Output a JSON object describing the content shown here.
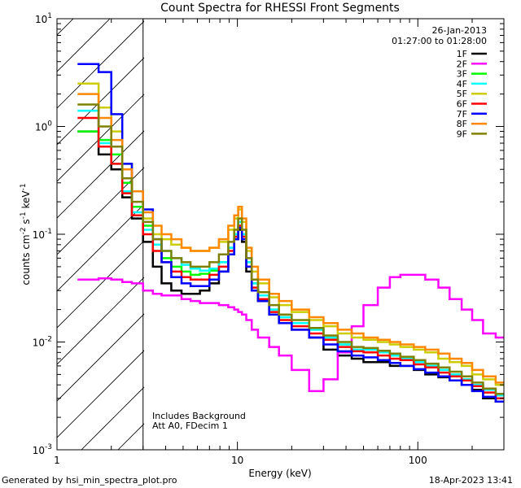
{
  "chart_data": {
    "type": "line",
    "title": "Count Spectra for RHESSI Front Segments",
    "xlabel": "Energy (keV)",
    "ylabel": "counts cm",
    "ylabel_sup1": "-2",
    "ylabel_mid": " s",
    "ylabel_sup2": "-1",
    "ylabel_end": " keV",
    "ylabel_sup3": "-1",
    "xscale": "log",
    "yscale": "log",
    "xlim": [
      1,
      300
    ],
    "ylim": [
      0.001,
      10
    ],
    "x_ticks": [
      {
        "value": 1,
        "label": "1"
      },
      {
        "value": 10,
        "label": "10"
      },
      {
        "value": 100,
        "label": "100"
      }
    ],
    "y_ticks": [
      {
        "value": 0.001,
        "base": "10",
        "exp": "-3"
      },
      {
        "value": 0.01,
        "base": "10",
        "exp": "-2"
      },
      {
        "value": 0.1,
        "base": "10",
        "exp": "-1"
      },
      {
        "value": 1,
        "base": "10",
        "exp": "0"
      },
      {
        "value": 10,
        "base": "10",
        "exp": "1"
      }
    ],
    "shaded_region": {
      "x_range": [
        1,
        3
      ],
      "pattern": "hatch"
    },
    "date": "26-Jan-2013",
    "time_range": "01:27:00 to 01:28:00",
    "annotations": [
      "Includes Background",
      "Att A0, FDecim 1"
    ],
    "legend_position": "top-right",
    "energy_edges": [
      1.3,
      1.7,
      2.0,
      2.3,
      2.6,
      3.0,
      3.4,
      3.8,
      4.3,
      4.9,
      5.5,
      6.2,
      7.0,
      7.9,
      8.9,
      9.6,
      10.1,
      10.6,
      11.2,
      12.0,
      13.0,
      15.0,
      17.0,
      20.0,
      25.0,
      30.0,
      36.0,
      43.0,
      50.0,
      60.0,
      70.0,
      80.0,
      95.0,
      110.0,
      130.0,
      150.0,
      175.0,
      200.0,
      230.0,
      270.0,
      300.0
    ],
    "series": [
      {
        "name": "1F",
        "color": "#000000",
        "values": [
          0.9,
          0.55,
          0.4,
          0.22,
          0.14,
          0.085,
          0.05,
          0.035,
          0.03,
          0.028,
          0.028,
          0.03,
          0.035,
          0.045,
          0.065,
          0.09,
          0.11,
          0.085,
          0.045,
          0.03,
          0.024,
          0.018,
          0.015,
          0.013,
          0.011,
          0.0085,
          0.0075,
          0.007,
          0.0065,
          0.0065,
          0.006,
          0.006,
          0.0055,
          0.005,
          0.0047,
          0.0044,
          0.004,
          0.0036,
          0.003,
          0.0028
        ]
      },
      {
        "name": "2F",
        "color": "#FF00FF",
        "values": [
          0.038,
          0.039,
          0.038,
          0.036,
          0.035,
          0.03,
          0.028,
          0.027,
          0.027,
          0.025,
          0.024,
          0.023,
          0.023,
          0.022,
          0.021,
          0.02,
          0.019,
          0.018,
          0.016,
          0.013,
          0.011,
          0.009,
          0.0075,
          0.0055,
          0.0035,
          0.0045,
          0.008,
          0.014,
          0.022,
          0.032,
          0.04,
          0.042,
          0.042,
          0.038,
          0.032,
          0.025,
          0.02,
          0.016,
          0.012,
          0.011
        ]
      },
      {
        "name": "3F",
        "color": "#00FF00",
        "values": [
          0.9,
          0.75,
          0.55,
          0.3,
          0.18,
          0.12,
          0.08,
          0.06,
          0.05,
          0.045,
          0.042,
          0.043,
          0.046,
          0.055,
          0.075,
          0.1,
          0.13,
          0.1,
          0.055,
          0.035,
          0.027,
          0.02,
          0.017,
          0.015,
          0.013,
          0.011,
          0.0095,
          0.0085,
          0.0085,
          0.008,
          0.0075,
          0.007,
          0.0065,
          0.006,
          0.0055,
          0.005,
          0.0045,
          0.004,
          0.0036,
          0.0032
        ]
      },
      {
        "name": "4F",
        "color": "#00FFFF",
        "values": [
          1.4,
          0.7,
          0.45,
          0.25,
          0.16,
          0.11,
          0.08,
          0.07,
          0.06,
          0.052,
          0.048,
          0.046,
          0.048,
          0.055,
          0.075,
          0.1,
          0.13,
          0.1,
          0.055,
          0.035,
          0.027,
          0.02,
          0.017,
          0.015,
          0.013,
          0.011,
          0.0095,
          0.0085,
          0.0085,
          0.008,
          0.0075,
          0.007,
          0.0065,
          0.006,
          0.0055,
          0.005,
          0.0045,
          0.004,
          0.0036,
          0.0032
        ]
      },
      {
        "name": "5F",
        "color": "#CCCC00",
        "values": [
          2.5,
          1.5,
          0.9,
          0.45,
          0.25,
          0.14,
          0.1,
          0.09,
          0.08,
          0.075,
          0.07,
          0.07,
          0.075,
          0.085,
          0.11,
          0.14,
          0.17,
          0.13,
          0.07,
          0.045,
          0.035,
          0.026,
          0.022,
          0.019,
          0.016,
          0.014,
          0.012,
          0.011,
          0.0105,
          0.01,
          0.0095,
          0.009,
          0.0085,
          0.008,
          0.007,
          0.0065,
          0.006,
          0.005,
          0.0045,
          0.004
        ]
      },
      {
        "name": "6F",
        "color": "#FF0000",
        "values": [
          1.2,
          0.65,
          0.45,
          0.24,
          0.15,
          0.1,
          0.07,
          0.055,
          0.045,
          0.04,
          0.038,
          0.038,
          0.042,
          0.05,
          0.07,
          0.095,
          0.12,
          0.095,
          0.05,
          0.032,
          0.025,
          0.019,
          0.016,
          0.014,
          0.012,
          0.0105,
          0.009,
          0.0082,
          0.008,
          0.0075,
          0.007,
          0.0068,
          0.0062,
          0.0058,
          0.0052,
          0.0048,
          0.0044,
          0.0039,
          0.0034,
          0.003
        ]
      },
      {
        "name": "7F",
        "color": "#0000FF",
        "values": [
          3.8,
          3.2,
          1.3,
          0.45,
          0.25,
          0.17,
          0.09,
          0.055,
          0.04,
          0.035,
          0.033,
          0.033,
          0.038,
          0.045,
          0.065,
          0.09,
          0.115,
          0.09,
          0.05,
          0.03,
          0.024,
          0.018,
          0.015,
          0.013,
          0.011,
          0.0095,
          0.0082,
          0.0075,
          0.0072,
          0.0068,
          0.0064,
          0.006,
          0.0056,
          0.0052,
          0.0048,
          0.0044,
          0.004,
          0.0035,
          0.0031,
          0.0028
        ]
      },
      {
        "name": "8F",
        "color": "#FF8800",
        "values": [
          2.0,
          1.2,
          0.75,
          0.4,
          0.25,
          0.16,
          0.12,
          0.1,
          0.09,
          0.075,
          0.07,
          0.07,
          0.075,
          0.09,
          0.12,
          0.15,
          0.18,
          0.14,
          0.075,
          0.05,
          0.038,
          0.028,
          0.024,
          0.02,
          0.017,
          0.015,
          0.013,
          0.012,
          0.011,
          0.0105,
          0.01,
          0.0095,
          0.009,
          0.0085,
          0.0078,
          0.007,
          0.0064,
          0.0055,
          0.0048,
          0.0042
        ]
      },
      {
        "name": "9F",
        "color": "#808000",
        "values": [
          1.6,
          1.0,
          0.65,
          0.33,
          0.2,
          0.13,
          0.09,
          0.07,
          0.06,
          0.055,
          0.05,
          0.05,
          0.055,
          0.065,
          0.085,
          0.11,
          0.14,
          0.11,
          0.06,
          0.038,
          0.029,
          0.022,
          0.018,
          0.016,
          0.0135,
          0.0115,
          0.01,
          0.009,
          0.0088,
          0.0083,
          0.0078,
          0.0073,
          0.0068,
          0.0063,
          0.0058,
          0.0053,
          0.0048,
          0.0042,
          0.0037,
          0.0033
        ]
      }
    ]
  },
  "footer": {
    "generated_by": "Generated by hsi_min_spectra_plot.pro",
    "timestamp": "18-Apr-2023 13:41"
  }
}
